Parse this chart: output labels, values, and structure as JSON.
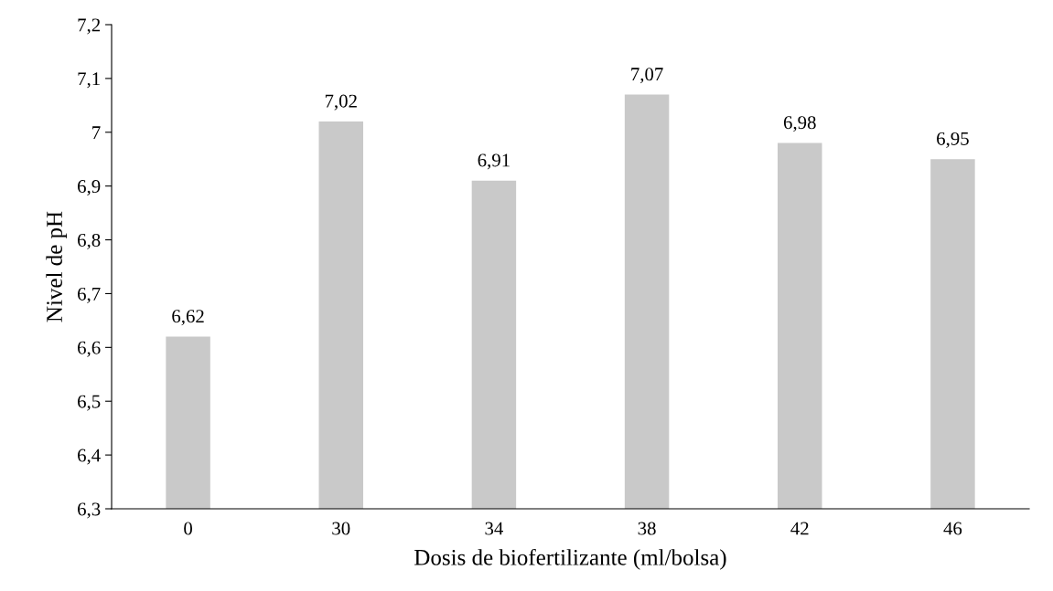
{
  "chart_data": {
    "type": "bar",
    "xlabel": "Dosis de biofertilizante (ml/bolsa)",
    "ylabel": "Nivel de pH",
    "categories": [
      "0",
      "30",
      "34",
      "38",
      "42",
      "46"
    ],
    "values": [
      6.62,
      7.02,
      6.91,
      7.07,
      6.98,
      6.95
    ],
    "value_labels": [
      "6,62",
      "7,02",
      "6,91",
      "7,07",
      "6,98",
      "6,95"
    ],
    "color": "#c9c9c9",
    "ylim": [
      6.3,
      7.2
    ],
    "yticks": [
      {
        "value": 6.3,
        "label": "6,3"
      },
      {
        "value": 6.4,
        "label": "6,4"
      },
      {
        "value": 6.5,
        "label": "6,5"
      },
      {
        "value": 6.6,
        "label": "6,6"
      },
      {
        "value": 6.7,
        "label": "6,7"
      },
      {
        "value": 6.8,
        "label": "6,8"
      },
      {
        "value": 6.9,
        "label": "6,9"
      },
      {
        "value": 7,
        "label": "7"
      },
      {
        "value": 7.1,
        "label": "7,1"
      },
      {
        "value": 7.2,
        "label": "7,2"
      }
    ],
    "grid": false,
    "legend": false
  }
}
